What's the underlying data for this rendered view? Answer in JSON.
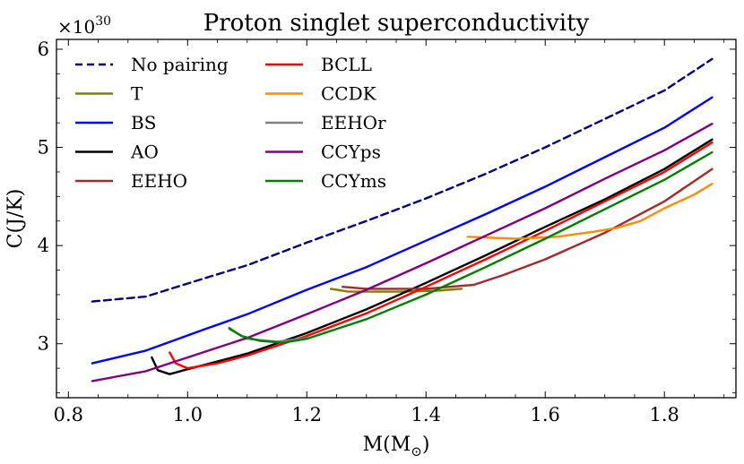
{
  "chart_data": {
    "type": "line",
    "title": "Proton singlet superconductivity",
    "xlabel": "M(M",
    "xlabel_subscript": "⊙",
    "xlabel_close": ")",
    "ylabel": "C(J/K)",
    "y_multiplier": "×10",
    "y_multiplier_exp": "30",
    "xlim": [
      0.78,
      1.92
    ],
    "ylim": [
      2.45,
      6.1
    ],
    "xticks": [
      0.8,
      1.0,
      1.2,
      1.4,
      1.6,
      1.8
    ],
    "xtick_labels": [
      "0.8",
      "1.0",
      "1.2",
      "1.4",
      "1.6",
      "1.8"
    ],
    "yticks": [
      3,
      4,
      5,
      6
    ],
    "ytick_labels": [
      "3",
      "4",
      "5",
      "6"
    ],
    "legend_position": "top-left",
    "series": [
      {
        "name": "No pairing",
        "color": "#000080",
        "dash": true,
        "x": [
          0.84,
          0.93,
          1.03,
          1.1,
          1.2,
          1.3,
          1.4,
          1.5,
          1.6,
          1.7,
          1.8,
          1.88
        ],
        "y": [
          3.43,
          3.48,
          3.67,
          3.8,
          4.03,
          4.25,
          4.48,
          4.73,
          5.0,
          5.29,
          5.58,
          5.9
        ]
      },
      {
        "name": "T",
        "color": "#808000",
        "dash": false,
        "x": [
          1.24,
          1.27,
          1.35,
          1.42,
          1.46
        ],
        "y": [
          3.56,
          3.53,
          3.53,
          3.54,
          3.56
        ]
      },
      {
        "name": "BS",
        "color": "#0000ff",
        "dash": false,
        "x": [
          0.84,
          0.93,
          1.03,
          1.1,
          1.2,
          1.3,
          1.4,
          1.5,
          1.6,
          1.7,
          1.8,
          1.88
        ],
        "y": [
          2.8,
          2.93,
          3.15,
          3.3,
          3.55,
          3.78,
          4.05,
          4.32,
          4.6,
          4.9,
          5.2,
          5.51
        ]
      },
      {
        "name": "AO",
        "color": "#000000",
        "dash": false,
        "x": [
          0.94,
          0.95,
          0.97,
          1.0,
          1.05,
          1.1,
          1.2,
          1.3,
          1.4,
          1.5,
          1.6,
          1.7,
          1.8,
          1.88
        ],
        "y": [
          2.86,
          2.73,
          2.69,
          2.74,
          2.82,
          2.9,
          3.11,
          3.35,
          3.62,
          3.9,
          4.19,
          4.47,
          4.78,
          5.08
        ]
      },
      {
        "name": "EEHO",
        "color": "#a52a2a",
        "dash": false,
        "x": [
          1.26,
          1.3,
          1.4,
          1.48,
          1.53,
          1.6,
          1.7,
          1.8,
          1.88
        ],
        "y": [
          3.58,
          3.56,
          3.56,
          3.6,
          3.7,
          3.86,
          4.13,
          4.45,
          4.78
        ]
      },
      {
        "name": "BCLL",
        "color": "#ff0000",
        "dash": false,
        "x": [
          0.97,
          0.98,
          1.0,
          1.05,
          1.1,
          1.2,
          1.3,
          1.4,
          1.5,
          1.6,
          1.7,
          1.8,
          1.88
        ],
        "y": [
          2.91,
          2.8,
          2.75,
          2.8,
          2.88,
          3.08,
          3.31,
          3.58,
          3.86,
          4.15,
          4.45,
          4.75,
          5.05
        ]
      },
      {
        "name": "CCDK",
        "color": "#ff8c00",
        "dash": false,
        "x": [
          1.47,
          1.55,
          1.62,
          1.68,
          1.72,
          1.76,
          1.8,
          1.85,
          1.88
        ],
        "y": [
          4.09,
          4.07,
          4.09,
          4.14,
          4.18,
          4.25,
          4.38,
          4.52,
          4.63
        ]
      },
      {
        "name": "EEHOr",
        "color": "#808080",
        "dash": false,
        "x": [
          1.07,
          1.1,
          1.15,
          1.2
        ],
        "y": [
          3.15,
          3.05,
          3.02,
          3.06
        ]
      },
      {
        "name": "CCYps",
        "color": "#800080",
        "dash": false,
        "x": [
          0.84,
          0.93,
          1.03,
          1.1,
          1.2,
          1.3,
          1.4,
          1.5,
          1.6,
          1.7,
          1.8,
          1.88
        ],
        "y": [
          2.62,
          2.72,
          2.92,
          3.06,
          3.3,
          3.55,
          3.82,
          4.1,
          4.38,
          4.68,
          4.97,
          5.24
        ]
      },
      {
        "name": "CCYms",
        "color": "#008000",
        "dash": false,
        "x": [
          1.07,
          1.09,
          1.12,
          1.16,
          1.2,
          1.3,
          1.4,
          1.5,
          1.6,
          1.7,
          1.8,
          1.88
        ],
        "y": [
          3.16,
          3.08,
          3.03,
          3.01,
          3.05,
          3.25,
          3.5,
          3.78,
          4.07,
          4.37,
          4.67,
          4.95
        ]
      }
    ]
  }
}
